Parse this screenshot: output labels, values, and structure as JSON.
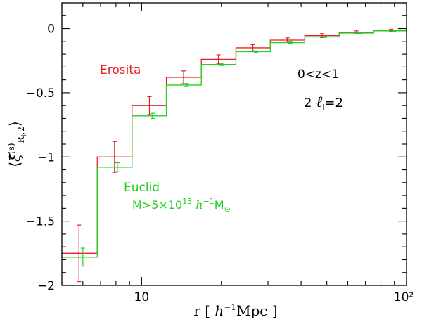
{
  "chart_data": {
    "type": "line",
    "step": true,
    "log_x": true,
    "xlim": [
      5,
      100
    ],
    "ylim": [
      -2,
      0.2
    ],
    "xlabel": "r  [ h⁻¹Mpc ]",
    "ylabel": "⟨ξ̂(s)R₁,2⟩",
    "grid": false,
    "x_ticks": [
      {
        "value": 10,
        "label": "10"
      },
      {
        "value": 100,
        "label": "10²"
      }
    ],
    "y_ticks": [
      {
        "value": 0,
        "label": "0"
      },
      {
        "value": -0.5,
        "label": "−0.5"
      },
      {
        "value": -1,
        "label": "−1"
      },
      {
        "value": -1.5,
        "label": "−1.5"
      },
      {
        "value": -2,
        "label": "−2"
      }
    ],
    "series": [
      {
        "name": "Erosita",
        "color": "#e8202a",
        "edges": [
          5,
          6.8,
          9.2,
          12.4,
          16.8,
          22.7,
          30.6,
          41.3,
          55.7,
          75.2,
          100
        ],
        "points": [
          {
            "x": 5.8,
            "y": -1.75,
            "err": 0.22
          },
          {
            "x": 7.9,
            "y": -1.0,
            "err": 0.12
          },
          {
            "x": 10.7,
            "y": -0.6,
            "err": 0.07
          },
          {
            "x": 14.4,
            "y": -0.38,
            "err": 0.05
          },
          {
            "x": 19.5,
            "y": -0.24,
            "err": 0.035
          },
          {
            "x": 26.3,
            "y": -0.15,
            "err": 0.025
          },
          {
            "x": 35.5,
            "y": -0.09,
            "err": 0.018
          },
          {
            "x": 48.0,
            "y": -0.055,
            "err": 0.015
          },
          {
            "x": 64.7,
            "y": -0.03,
            "err": 0.012
          },
          {
            "x": 87.5,
            "y": -0.015,
            "err": 0.01
          }
        ]
      },
      {
        "name": "Euclid",
        "color": "#22d022",
        "edges": [
          5,
          6.8,
          9.2,
          12.4,
          16.8,
          22.7,
          30.6,
          41.3,
          55.7,
          75.2,
          100
        ],
        "points": [
          {
            "x": 6.0,
            "y": -1.78,
            "err": 0.07
          },
          {
            "x": 8.1,
            "y": -1.08,
            "err": 0.035
          },
          {
            "x": 11.0,
            "y": -0.68,
            "err": 0.02
          },
          {
            "x": 14.8,
            "y": -0.44,
            "err": 0.012
          },
          {
            "x": 20.0,
            "y": -0.28,
            "err": 0.008
          },
          {
            "x": 27.0,
            "y": -0.18,
            "err": 0.006
          },
          {
            "x": 36.4,
            "y": -0.11,
            "err": 0.005
          },
          {
            "x": 49.2,
            "y": -0.065,
            "err": 0.004
          },
          {
            "x": 66.4,
            "y": -0.035,
            "err": 0.003
          },
          {
            "x": 89.7,
            "y": -0.018,
            "err": 0.003
          }
        ]
      }
    ],
    "annotations": {
      "erosita_label": "Erosita",
      "euclid_label": "Euclid",
      "mass_cut": "M>5×10¹³ h⁻¹M⊙",
      "redshift_range": "0<z<1",
      "multipole": "2 ℓᵢ=2"
    }
  },
  "colors": {
    "erosita": "#e8202a",
    "euclid": "#22d022",
    "axes": "#000000"
  }
}
